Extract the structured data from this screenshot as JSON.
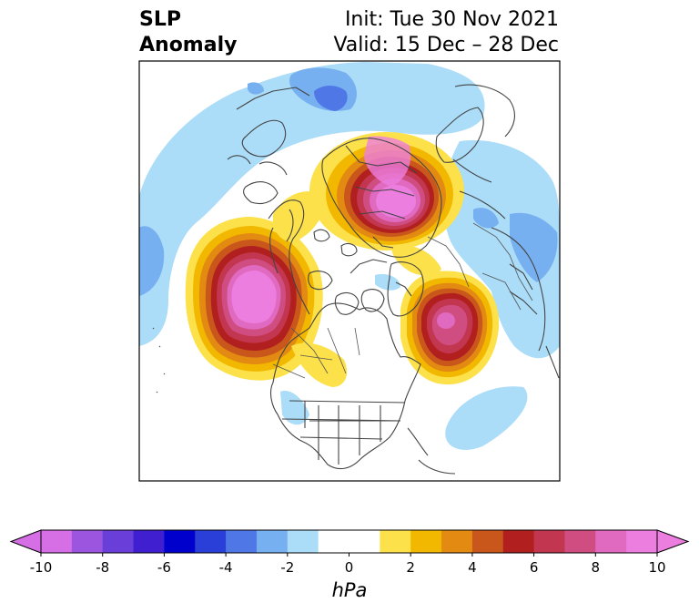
{
  "title": {
    "left_line1": "SLP",
    "left_line2": "Anomaly",
    "right_line1": "Init: Tue 30 Nov 2021",
    "right_line2": "Valid: 15 Dec – 28 Dec"
  },
  "colorbar": {
    "units": "hPa",
    "tick_labels": [
      "-10",
      "-8",
      "-6",
      "-4",
      "-2",
      "0",
      "2",
      "4",
      "6",
      "8",
      "10"
    ],
    "colors": [
      "#d66ee6",
      "#9b55de",
      "#6a3ed8",
      "#3f1fcf",
      "#0000cc",
      "#2a3fd8",
      "#4f78e6",
      "#77b0f0",
      "#abdcf8",
      "#ffffff",
      "#ffffff",
      "#fce14a",
      "#f2b800",
      "#e38a12",
      "#c9561a",
      "#b1201e",
      "#c23650",
      "#d04d82",
      "#e06ac0",
      "#ec7ee0"
    ]
  }
}
